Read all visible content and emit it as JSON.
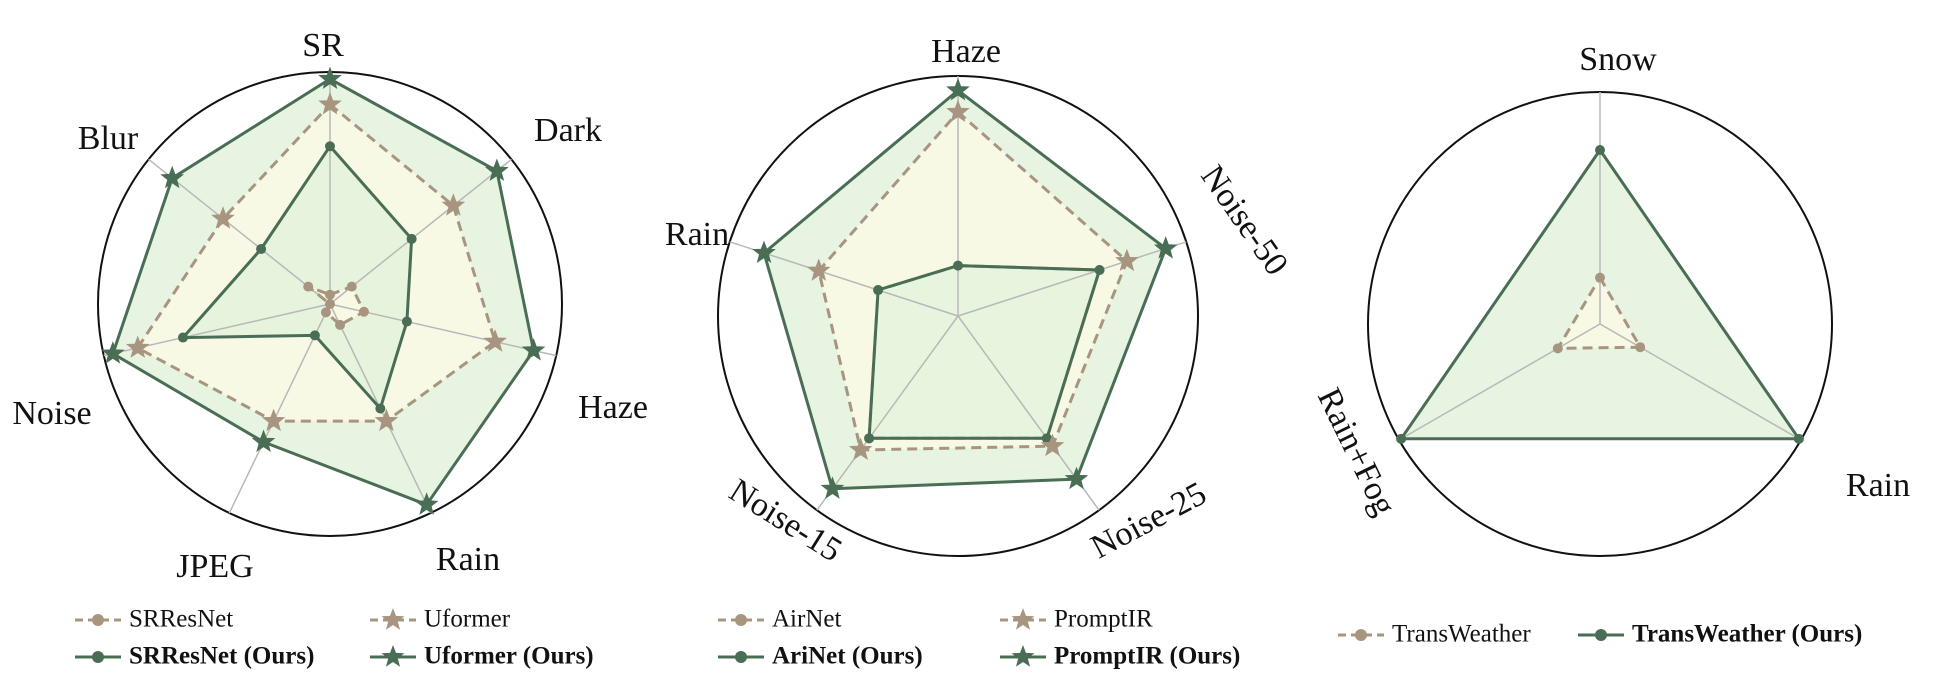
{
  "colors": {
    "baseline_line": "#a89580",
    "ours_line": "#4a6e55",
    "baseline_fill": "#fdfbe6",
    "ours_fill": "#e3f2dc",
    "overlap_fill": "#d6ecd0",
    "spoke": "#b8b8b8",
    "circle": "#111111"
  },
  "chart_data": [
    {
      "type": "radar",
      "axes": [
        "SR",
        "Dark",
        "Haze",
        "Rain",
        "JPEG",
        "Noise",
        "Blur"
      ],
      "range": [
        0,
        1
      ],
      "series": [
        {
          "name": "SRResNet",
          "style": "dashed",
          "marker": "circle",
          "role": "baseline",
          "values": [
            0.04,
            0.12,
            0.15,
            0.1,
            0.04,
            0.0,
            0.12
          ]
        },
        {
          "name": "SRResNet (Ours)",
          "style": "solid",
          "marker": "circle",
          "role": "ours",
          "values": [
            0.68,
            0.45,
            0.34,
            0.5,
            0.15,
            0.65,
            0.38
          ]
        },
        {
          "name": "Uformer",
          "style": "dashed",
          "marker": "star",
          "role": "baseline",
          "values": [
            0.86,
            0.68,
            0.73,
            0.56,
            0.56,
            0.85,
            0.59
          ]
        },
        {
          "name": "Uformer (Ours)",
          "style": "solid",
          "marker": "star",
          "role": "ours",
          "values": [
            0.97,
            0.92,
            0.9,
            0.96,
            0.66,
            0.96,
            0.87
          ]
        }
      ]
    },
    {
      "type": "radar",
      "axes": [
        "Haze",
        "Noise-50",
        "Noise-25",
        "Noise-15",
        "Rain"
      ],
      "range": [
        0,
        1
      ],
      "series": [
        {
          "name": "AirNet",
          "style": "dashed",
          "marker": "circle",
          "role": "baseline",
          "values": [
            0.21,
            0.62,
            0.63,
            0.63,
            0.35
          ]
        },
        {
          "name": "AriNet (Ours)",
          "style": "solid",
          "marker": "circle",
          "role": "ours",
          "values": [
            0.21,
            0.62,
            0.63,
            0.63,
            0.35
          ]
        },
        {
          "name": "PromptIR",
          "style": "dashed",
          "marker": "star",
          "role": "baseline",
          "values": [
            0.85,
            0.74,
            0.67,
            0.69,
            0.61
          ]
        },
        {
          "name": "PromptIR (Ours)",
          "style": "solid",
          "marker": "star",
          "role": "ours",
          "values": [
            0.94,
            0.91,
            0.84,
            0.89,
            0.85
          ]
        }
      ]
    },
    {
      "type": "radar",
      "axes": [
        "Snow",
        "Rain",
        "Rain+Fog"
      ],
      "range": [
        0,
        1
      ],
      "series": [
        {
          "name": "TransWeather",
          "style": "dashed",
          "marker": "circle",
          "role": "baseline",
          "values": [
            0.2,
            0.2,
            0.21
          ]
        },
        {
          "name": "TransWeather (Ours)",
          "style": "solid",
          "marker": "circle",
          "role": "ours",
          "values": [
            0.75,
            0.99,
            0.99
          ]
        }
      ]
    }
  ]
}
